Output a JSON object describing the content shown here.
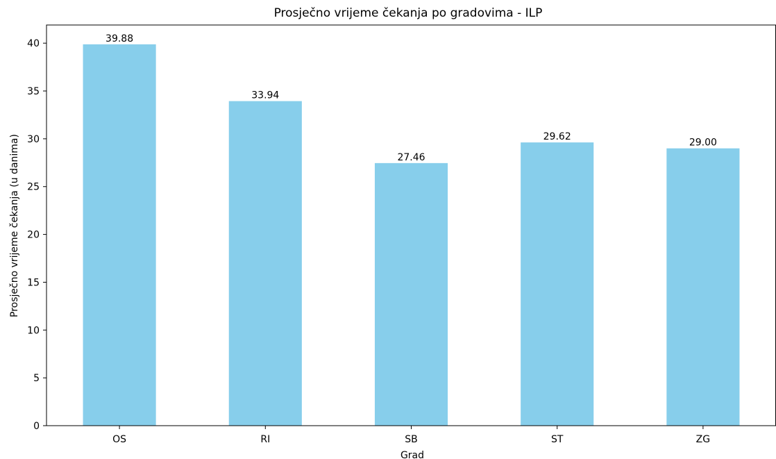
{
  "chart_data": {
    "type": "bar",
    "title": "Prosječno vrijeme čekanja po gradovima - ILP",
    "xlabel": "Grad",
    "ylabel": "Prosječno vrijeme čekanja (u danima)",
    "categories": [
      "OS",
      "RI",
      "SB",
      "ST",
      "ZG"
    ],
    "values": [
      39.88,
      33.94,
      27.46,
      29.62,
      29.0
    ],
    "data_labels": [
      "39.88",
      "33.94",
      "27.46",
      "29.62",
      "29.00"
    ],
    "ylim": [
      0,
      41.9
    ],
    "yticks": [
      0,
      5,
      10,
      15,
      20,
      25,
      30,
      35,
      40
    ],
    "grid": false,
    "legend": "none",
    "bar_color": "#87ceeb"
  }
}
